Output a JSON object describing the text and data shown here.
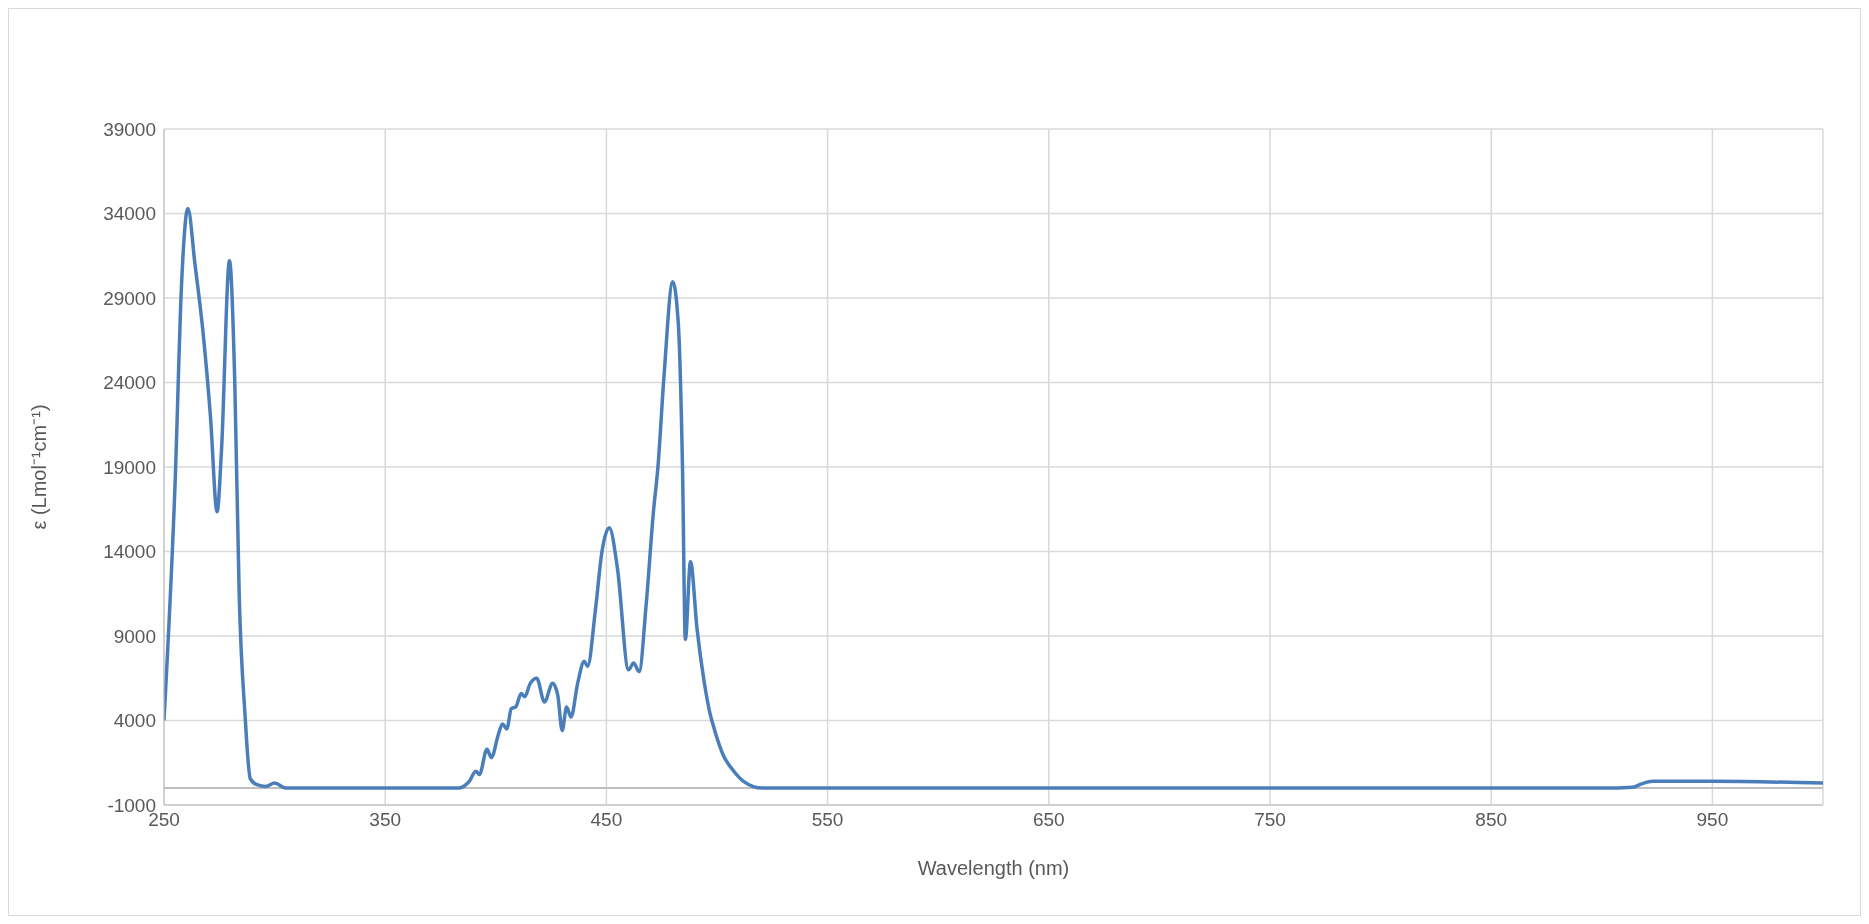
{
  "chart_data": {
    "type": "line",
    "xlabel": "Wavelength (nm)",
    "ylabel": "ε (Lmol⁻¹cm⁻¹)",
    "x": [
      250,
      255,
      258,
      260.8,
      264,
      267.7,
      271,
      274,
      276,
      279.6,
      282,
      284,
      286.6,
      289,
      292,
      296,
      300,
      305,
      373,
      383,
      388,
      391,
      392.6,
      396,
      398,
      401,
      403,
      405,
      407,
      409,
      411.5,
      413,
      415.6,
      418.5,
      422,
      425.7,
      428,
      430,
      432,
      434,
      437,
      440,
      441.5,
      445,
      448,
      451.3,
      455,
      460,
      462.3,
      464.8,
      468,
      471.3,
      473.3,
      476,
      480,
      482.5,
      484.4,
      485.7,
      488,
      491,
      494.3,
      496.7,
      499,
      503,
      507,
      512,
      520.5,
      900,
      914,
      918,
      923,
      950,
      1000
    ],
    "series": [
      {
        "color": "#4a7ebb",
        "values": [
          4000,
          18000,
          30000,
          34300,
          31000,
          26900,
          22000,
          16350,
          20000,
          31200,
          24000,
          11400,
          4400,
          560,
          200,
          100,
          300,
          0,
          0,
          0,
          400,
          1000,
          800,
          2300,
          1800,
          3100,
          3800,
          3500,
          4700,
          4800,
          5600,
          5400,
          6200,
          6500,
          5100,
          6200,
          5500,
          3400,
          4800,
          4200,
          6200,
          7500,
          7200,
          10500,
          14000,
          15400,
          13000,
          7000,
          7400,
          6900,
          10900,
          16400,
          19000,
          24300,
          29960,
          27500,
          19000,
          8800,
          13400,
          9400,
          6200,
          4500,
          3400,
          1900,
          1100,
          400,
          0,
          0,
          50,
          250,
          400,
          400,
          300
        ]
      }
    ],
    "xlim": [
      250,
      1000
    ],
    "xticks": [
      250,
      350,
      450,
      550,
      650,
      750,
      850,
      950
    ],
    "ylim": [
      -1000,
      39000
    ],
    "yticks": [
      -1000,
      4000,
      9000,
      14000,
      19000,
      24000,
      29000,
      34000,
      39000
    ],
    "grid": true,
    "legend": false,
    "marker": "none",
    "line_style": "solid",
    "ref_lines": [
      {
        "axis": "y",
        "value": 0,
        "color": "#bfbfbf"
      }
    ]
  }
}
